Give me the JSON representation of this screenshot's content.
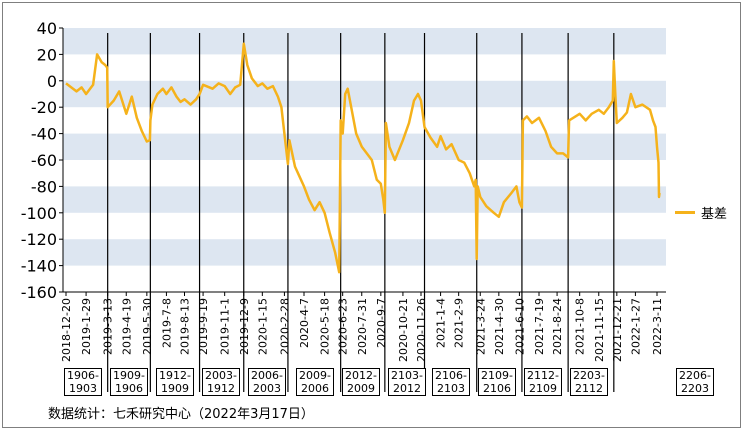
{
  "chart_data": {
    "type": "line",
    "title": "",
    "xlabel": "",
    "ylabel": "",
    "ylim": [
      -160,
      40
    ],
    "yticks": [
      40,
      20,
      0,
      -20,
      -40,
      -60,
      -80,
      -100,
      -120,
      -140,
      -160
    ],
    "xticks": [
      "2018-12-20",
      "2019-1-29",
      "2019-3-13",
      "2019-4-19",
      "2019-5-30",
      "2019-7-8",
      "2019-8-13",
      "2019-9-19",
      "2019-11-1",
      "2019-12-9",
      "2020-1-15",
      "2020-2-28",
      "2020-4-7",
      "2020-5-18",
      "2020-6-23",
      "2020-7-31",
      "2020-9-7",
      "2020-10-21",
      "2020-11-26",
      "2021-1-4",
      "2021-2-9",
      "2021-3-24",
      "2021-4-30",
      "2021-6-10",
      "2021-7-19",
      "2021-8-24",
      "2021-10-8",
      "2021-11-15",
      "2021-12-21",
      "2022-1-27",
      "2022-3-11"
    ],
    "bands": "alternating light-blue horizontal bands",
    "legend_position": "right",
    "series": [
      {
        "name": "基差",
        "color": "#F5B21B",
        "points": [
          [
            "2018-12-20",
            -2
          ],
          [
            "2019-1-10",
            -8
          ],
          [
            "2019-1-20",
            -5
          ],
          [
            "2019-1-29",
            -10
          ],
          [
            "2019-2-12",
            -3
          ],
          [
            "2019-2-20",
            20
          ],
          [
            "2019-3-1",
            14
          ],
          [
            "2019-3-8",
            12
          ],
          [
            "2019-3-12",
            10
          ],
          [
            "2019-3-13",
            -20
          ],
          [
            "2019-3-25",
            -15
          ],
          [
            "2019-4-5",
            -8
          ],
          [
            "2019-4-19",
            -25
          ],
          [
            "2019-4-30",
            -12
          ],
          [
            "2019-5-10",
            -28
          ],
          [
            "2019-5-20",
            -38
          ],
          [
            "2019-5-30",
            -46
          ],
          [
            "2019-6-5",
            -45
          ],
          [
            "2019-6-6",
            -30
          ],
          [
            "2019-6-10",
            -18
          ],
          [
            "2019-6-20",
            -10
          ],
          [
            "2019-7-1",
            -6
          ],
          [
            "2019-7-8",
            -10
          ],
          [
            "2019-7-18",
            -5
          ],
          [
            "2019-7-28",
            -12
          ],
          [
            "2019-8-5",
            -16
          ],
          [
            "2019-8-13",
            -14
          ],
          [
            "2019-8-25",
            -18
          ],
          [
            "2019-9-5",
            -14
          ],
          [
            "2019-9-12",
            -10
          ],
          [
            "2019-9-19",
            -3
          ],
          [
            "2019-10-8",
            -6
          ],
          [
            "2019-10-20",
            -2
          ],
          [
            "2019-11-1",
            -4
          ],
          [
            "2019-11-12",
            -10
          ],
          [
            "2019-11-22",
            -5
          ],
          [
            "2019-12-2",
            -3
          ],
          [
            "2019-12-9",
            28
          ],
          [
            "2019-12-16",
            12
          ],
          [
            "2019-12-25",
            2
          ],
          [
            "2020-1-6",
            -4
          ],
          [
            "2020-1-15",
            -2
          ],
          [
            "2020-1-25",
            -6
          ],
          [
            "2020-2-5",
            -4
          ],
          [
            "2020-2-15",
            -12
          ],
          [
            "2020-2-22",
            -20
          ],
          [
            "2020-2-28",
            -40
          ],
          [
            "2020-3-6",
            -63
          ],
          [
            "2020-3-9",
            -45
          ],
          [
            "2020-3-20",
            -65
          ],
          [
            "2020-4-1",
            -75
          ],
          [
            "2020-4-7",
            -80
          ],
          [
            "2020-4-17",
            -90
          ],
          [
            "2020-4-28",
            -98
          ],
          [
            "2020-5-8",
            -92
          ],
          [
            "2020-5-18",
            -100
          ],
          [
            "2020-5-28",
            -115
          ],
          [
            "2020-6-8",
            -130
          ],
          [
            "2020-6-16",
            -145
          ],
          [
            "2020-6-19",
            -30
          ],
          [
            "2020-6-23",
            -40
          ],
          [
            "2020-6-28",
            -10
          ],
          [
            "2020-7-3",
            -6
          ],
          [
            "2020-7-10",
            -20
          ],
          [
            "2020-7-20",
            -40
          ],
          [
            "2020-7-31",
            -50
          ],
          [
            "2020-8-10",
            -55
          ],
          [
            "2020-8-20",
            -60
          ],
          [
            "2020-8-30",
            -75
          ],
          [
            "2020-9-7",
            -78
          ],
          [
            "2020-9-12",
            -90
          ],
          [
            "2020-9-15",
            -100
          ],
          [
            "2020-9-17",
            -32
          ],
          [
            "2020-9-24",
            -50
          ],
          [
            "2020-10-5",
            -60
          ],
          [
            "2020-10-21",
            -45
          ],
          [
            "2020-11-2",
            -32
          ],
          [
            "2020-11-12",
            -15
          ],
          [
            "2020-11-20",
            -10
          ],
          [
            "2020-11-26",
            -15
          ],
          [
            "2020-12-3",
            -35
          ],
          [
            "2020-12-15",
            -43
          ],
          [
            "2020-12-28",
            -50
          ],
          [
            "2021-1-4",
            -42
          ],
          [
            "2021-1-15",
            -52
          ],
          [
            "2021-1-26",
            -48
          ],
          [
            "2021-2-9",
            -60
          ],
          [
            "2021-2-20",
            -62
          ],
          [
            "2021-3-3",
            -70
          ],
          [
            "2021-3-12",
            -80
          ],
          [
            "2021-3-15",
            -75
          ],
          [
            "2021-3-17",
            -135
          ],
          [
            "2021-3-19",
            -80
          ],
          [
            "2021-3-24",
            -88
          ],
          [
            "2021-4-5",
            -95
          ],
          [
            "2021-4-20",
            -100
          ],
          [
            "2021-4-30",
            -103
          ],
          [
            "2021-5-10",
            -92
          ],
          [
            "2021-5-25",
            -85
          ],
          [
            "2021-6-4",
            -80
          ],
          [
            "2021-6-10",
            -92
          ],
          [
            "2021-6-15",
            -96
          ],
          [
            "2021-6-17",
            -30
          ],
          [
            "2021-6-25",
            -27
          ],
          [
            "2021-7-5",
            -32
          ],
          [
            "2021-7-19",
            -28
          ],
          [
            "2021-8-1",
            -38
          ],
          [
            "2021-8-12",
            -50
          ],
          [
            "2021-8-24",
            -55
          ],
          [
            "2021-9-5",
            -55
          ],
          [
            "2021-9-15",
            -58
          ],
          [
            "2021-9-17",
            -30
          ],
          [
            "2021-10-8",
            -25
          ],
          [
            "2021-10-20",
            -30
          ],
          [
            "2021-11-1",
            -25
          ],
          [
            "2021-11-15",
            -22
          ],
          [
            "2021-11-25",
            -25
          ],
          [
            "2021-12-5",
            -20
          ],
          [
            "2021-12-13",
            -15
          ],
          [
            "2021-12-15",
            15
          ],
          [
            "2021-12-18",
            -10
          ],
          [
            "2021-12-21",
            -32
          ],
          [
            "2022-1-1",
            -28
          ],
          [
            "2022-1-10",
            -24
          ],
          [
            "2022-1-18",
            -10
          ],
          [
            "2022-1-27",
            -20
          ],
          [
            "2022-2-10",
            -18
          ],
          [
            "2022-2-25",
            -22
          ],
          [
            "2022-3-3",
            -30
          ],
          [
            "2022-3-8",
            -35
          ],
          [
            "2022-3-11",
            -50
          ],
          [
            "2022-3-14",
            -62
          ],
          [
            "2022-3-15",
            -88
          ],
          [
            "2022-3-16",
            -85
          ]
        ]
      }
    ],
    "contracts": [
      "1906-\n1903",
      "1909-\n1906",
      "1912-\n1909",
      "2003-\n1912",
      "2006-\n2003",
      "2009-\n2006",
      "2012-\n2009",
      "2103-\n2012",
      "2106-\n2103",
      "2109-\n2106",
      "2112-\n2109",
      "2203-\n2112",
      "2206-\n2203"
    ]
  },
  "footnote": "数据统计：七禾研究中心（2022年3月17日）"
}
